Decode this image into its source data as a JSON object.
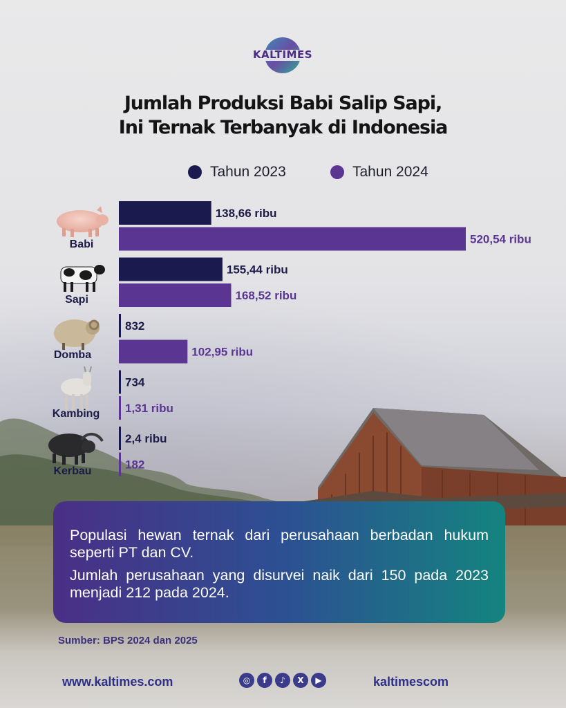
{
  "brand": {
    "logo_text": "KALTIMES"
  },
  "title_lines": [
    "Jumlah Produksi Babi Salip Sapi,",
    "Ini Ternak Terbanyak di Indonesia"
  ],
  "legend": [
    {
      "label": "Tahun 2023",
      "color": "#1b1a4f"
    },
    {
      "label": "Tahun 2024",
      "color": "#5a3592"
    }
  ],
  "chart_data": {
    "type": "bar",
    "orientation": "horizontal",
    "title": "Jumlah Produksi Babi Salip Sapi, Ini Ternak Terbanyak di Indonesia",
    "categories": [
      "Babi",
      "Sapi",
      "Domba",
      "Kambing",
      "Kerbau"
    ],
    "category_icons": [
      "pig-icon",
      "cow-icon",
      "sheep-icon",
      "goat-icon",
      "buffalo-icon"
    ],
    "unit": "ribu",
    "series": [
      {
        "name": "Tahun 2023",
        "color": "#1b1a4f",
        "values": [
          138.66,
          155.44,
          0.832,
          0.734,
          2.4
        ],
        "labels": [
          "138,66 ribu",
          "155,44 ribu",
          "832",
          "734",
          "2,4 ribu"
        ]
      },
      {
        "name": "Tahun 2024",
        "color": "#5a3592",
        "values": [
          520.54,
          168.52,
          102.95,
          1.31,
          0.182
        ],
        "labels": [
          "520,54 ribu",
          "168,52 ribu",
          "102,95 ribu",
          "1,31 ribu",
          "182"
        ]
      }
    ],
    "legend_position": "top",
    "grid": false
  },
  "info": {
    "paragraph1": "Populasi hewan ternak dari perusahaan berbadan hukum seperti PT dan CV.",
    "paragraph2": "Jumlah perusahaan yang disurvei naik dari 150 pada 2023 menjadi 212 pada 2024."
  },
  "source": "Sumber: BPS 2024 dan 2025",
  "footer": {
    "website": "www.kaltimes.com",
    "handle": "kaltimescom",
    "social_icons": [
      "instagram-icon",
      "facebook-icon",
      "tiktok-icon",
      "x-icon",
      "youtube-icon"
    ]
  }
}
